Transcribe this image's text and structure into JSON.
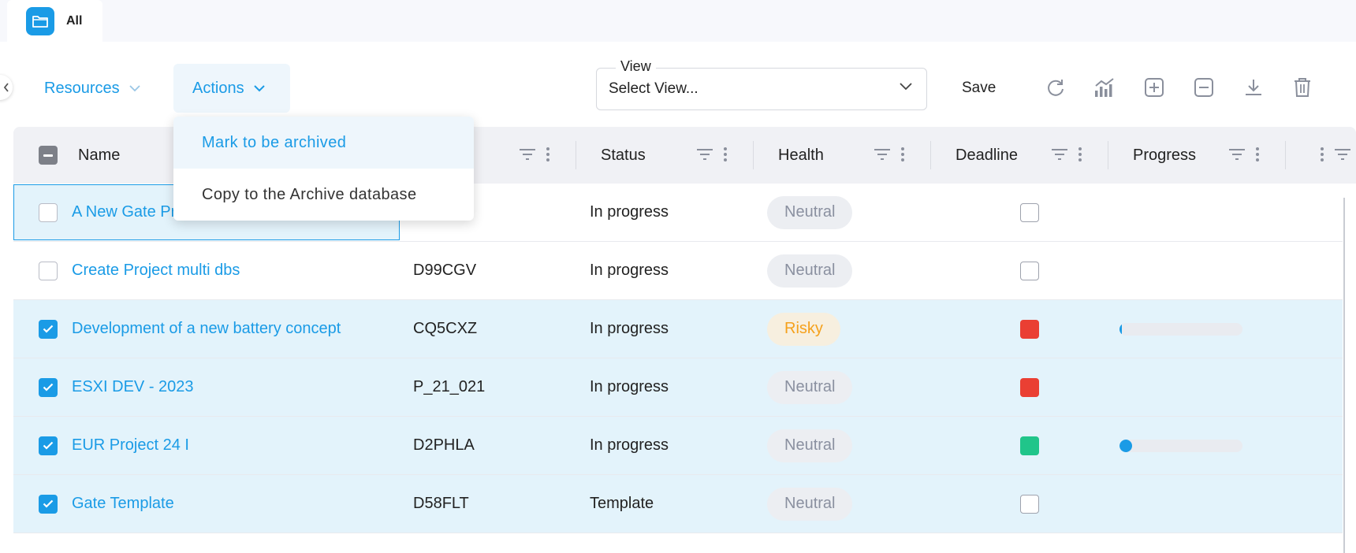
{
  "tab": {
    "label": "All",
    "icon": "folder-icon"
  },
  "toolbar": {
    "resources_label": "Resources",
    "actions_label": "Actions",
    "view_legend": "View",
    "view_value": "Select View...",
    "save_label": "Save",
    "icons": [
      "refresh-icon",
      "chart-icon",
      "expand-all-icon",
      "collapse-all-icon",
      "download-icon",
      "delete-icon"
    ]
  },
  "actions_menu": {
    "items": [
      {
        "label": "Mark to be archived",
        "state": "hovered"
      },
      {
        "label": "Copy to the Archive database",
        "state": "normal"
      }
    ]
  },
  "table": {
    "columns": {
      "name": "Name",
      "status": "Status",
      "health": "Health",
      "deadline": "Deadline",
      "progress": "Progress"
    },
    "header_checkbox": "indeterminate",
    "rows": [
      {
        "name": "A New Gate Pr",
        "code": "",
        "status": "In progress",
        "health": "Neutral",
        "deadline": "none",
        "progress": null,
        "checked": false
      },
      {
        "name": "Create Project multi dbs",
        "code": "D99CGV",
        "status": "In progress",
        "health": "Neutral",
        "deadline": "none",
        "progress": null,
        "checked": false
      },
      {
        "name": "Development of a new battery concept",
        "code": "CQ5CXZ",
        "status": "In progress",
        "health": "Risky",
        "deadline": "red",
        "progress": 0.02,
        "checked": true
      },
      {
        "name": "ESXI DEV - 2023",
        "code": "P_21_021",
        "status": "In progress",
        "health": "Neutral",
        "deadline": "red",
        "progress": null,
        "checked": true
      },
      {
        "name": "EUR Project 24 I",
        "code": "D2PHLA",
        "status": "In progress",
        "health": "Neutral",
        "deadline": "green",
        "progress": 0.1,
        "checked": true
      },
      {
        "name": "Gate Template",
        "code": "D58FLT",
        "status": "Template",
        "health": "Neutral",
        "deadline": "none",
        "progress": null,
        "checked": true
      }
    ]
  },
  "colors": {
    "accent": "#1a9be6",
    "risky": "#f5a11c",
    "deadline_red": "#ea3f33",
    "deadline_green": "#20c58a"
  }
}
